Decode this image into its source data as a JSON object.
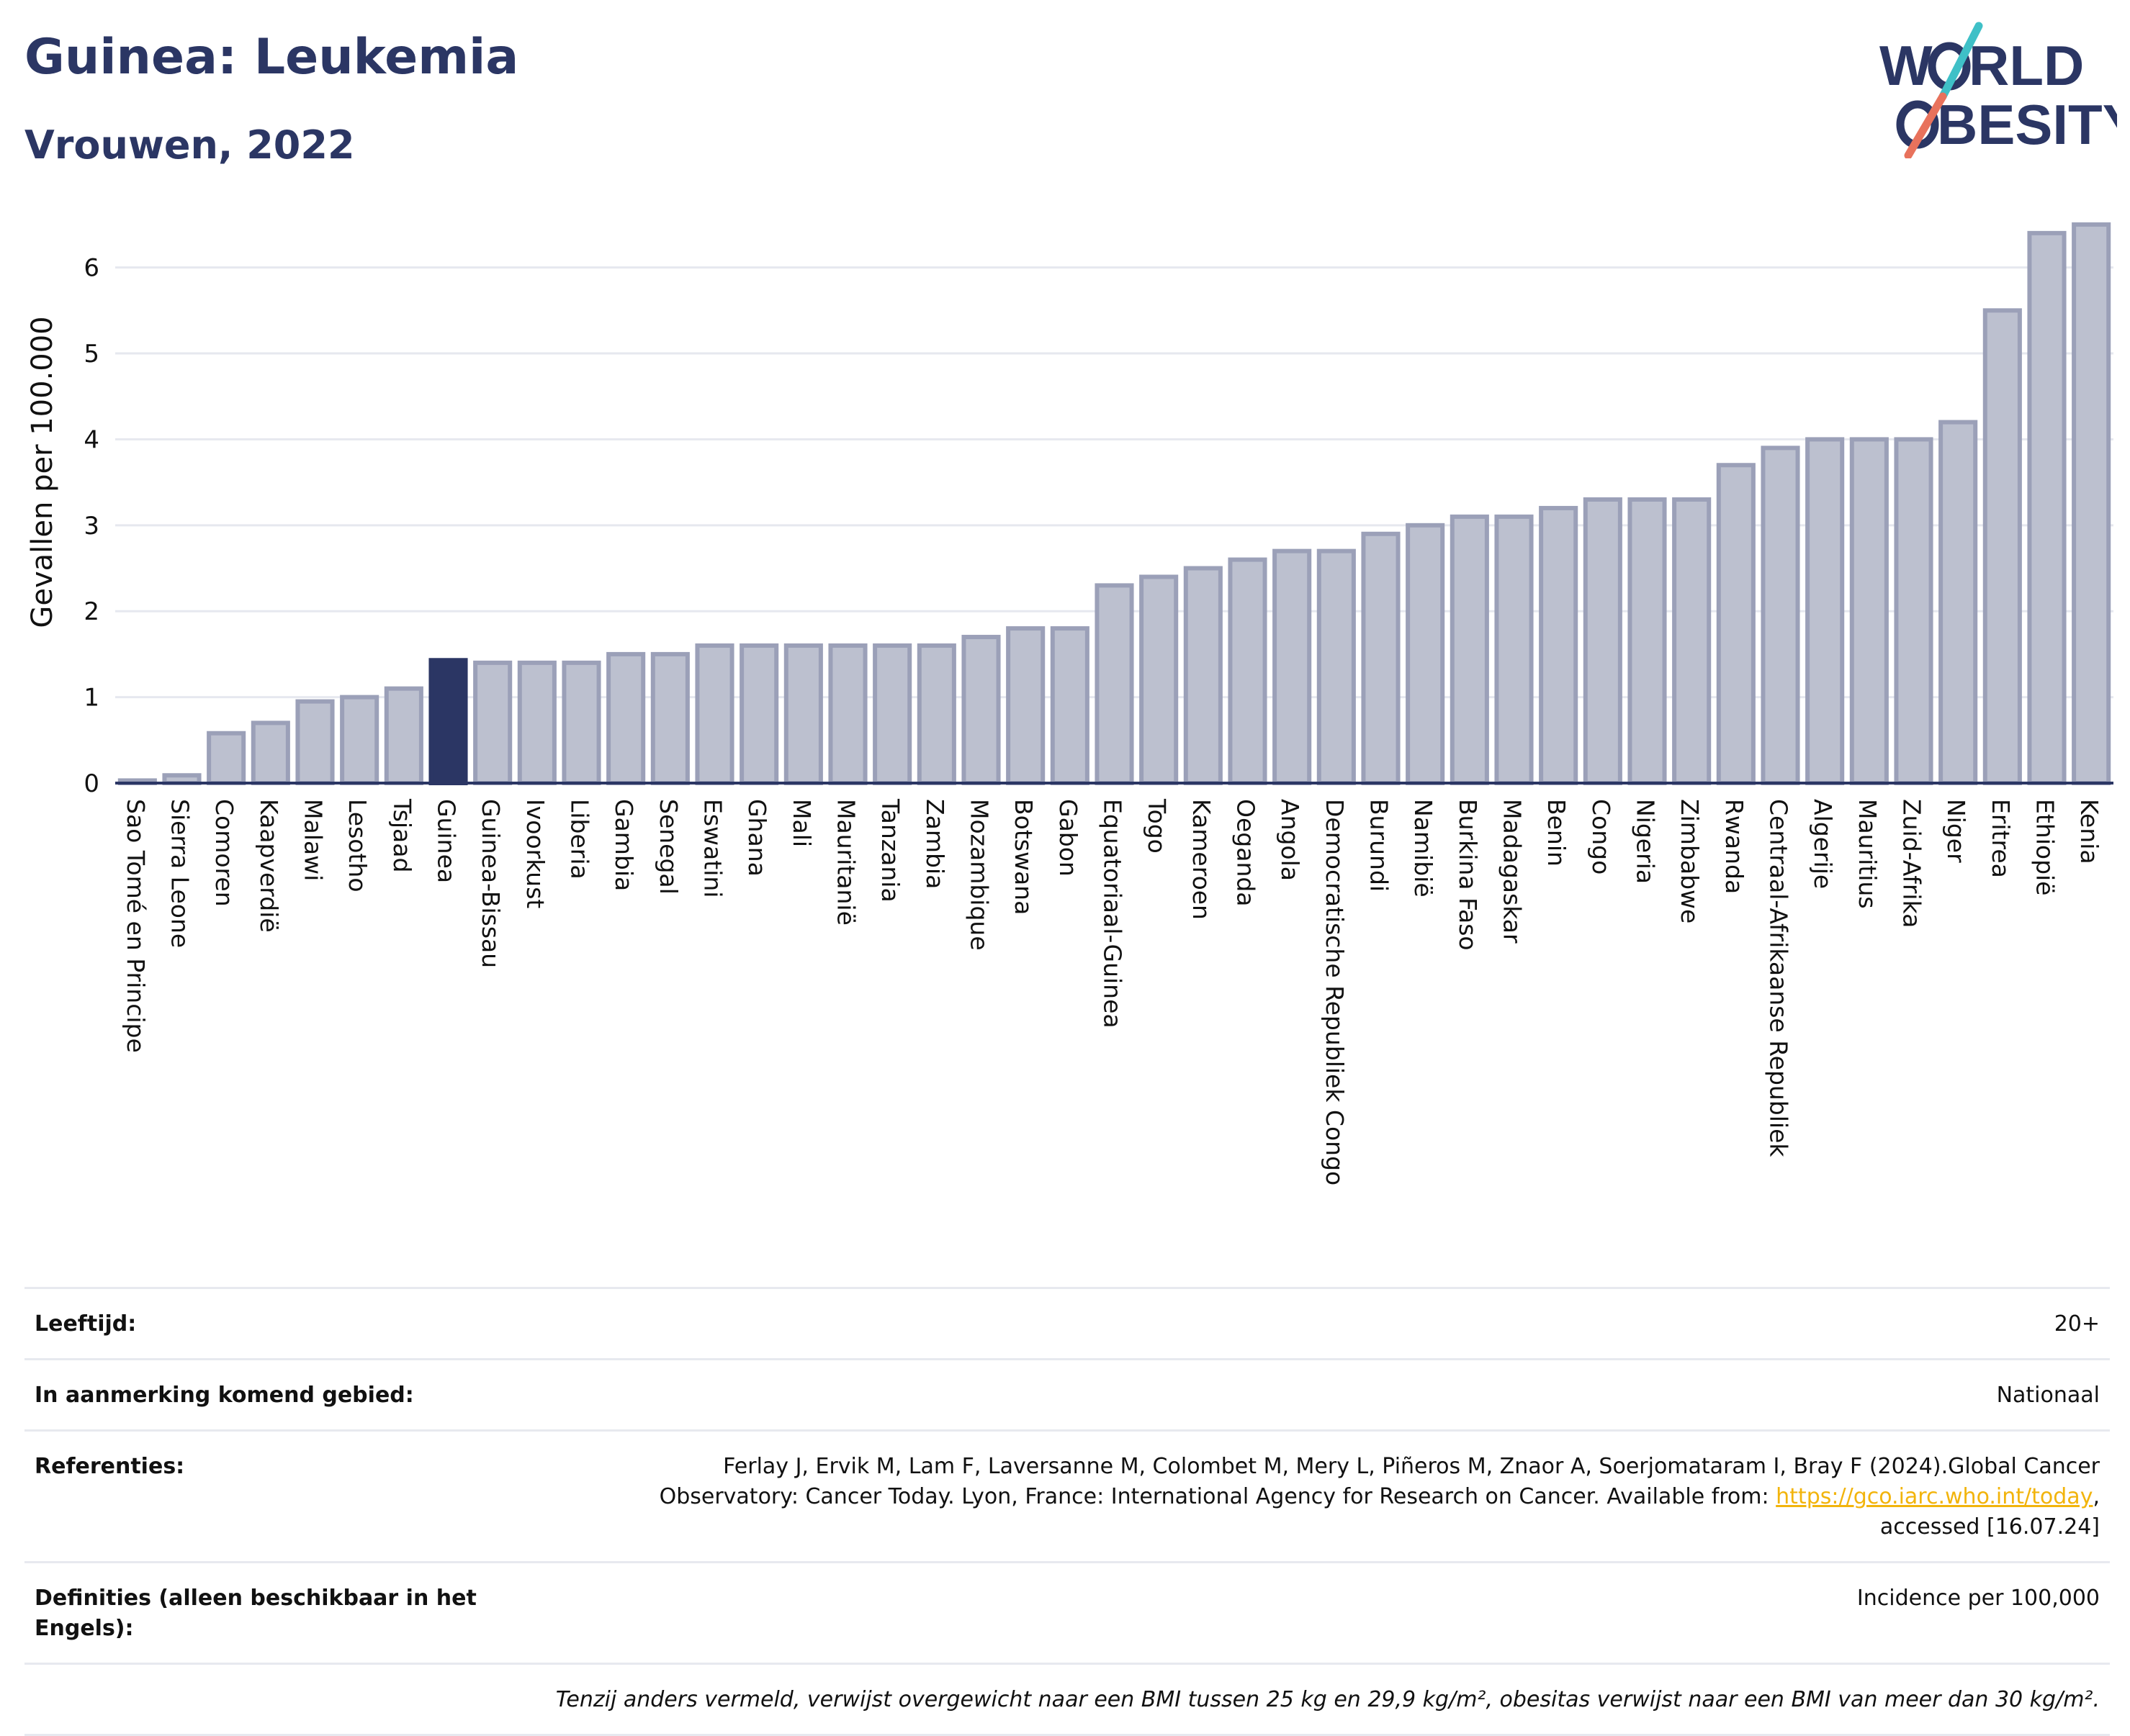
{
  "header": {
    "title": "Guinea: Leukemia",
    "subtitle": "Vrouwen, 2022"
  },
  "logo": {
    "line1_a": "W",
    "line1_b": "RLD",
    "line2_b": "BESITY",
    "colors": {
      "text": "#2b3664",
      "slash_top": "#3fc0c7",
      "slash_bottom": "#e8725c"
    }
  },
  "colors": {
    "bar": "#bcc0cf",
    "bar_stroke": "#9ba0b8",
    "highlight": "#2b3664",
    "grid": "#e6e8ef",
    "axis": "#2b3664"
  },
  "chart_data": {
    "type": "bar",
    "title": "Guinea: Leukemia",
    "subtitle": "Vrouwen, 2022",
    "xlabel": "",
    "ylabel": "Gevallen per 100.000",
    "ylim": [
      0,
      6.6
    ],
    "yticks": [
      0,
      1,
      2,
      3,
      4,
      5,
      6
    ],
    "grid": true,
    "highlight": "Guinea",
    "categories": [
      "Sao Tomé en Principe",
      "Sierra Leone",
      "Comoren",
      "Kaapverdië",
      "Malawi",
      "Lesotho",
      "Tsjaad",
      "Guinea",
      "Guinea-Bissau",
      "Ivoorkust",
      "Liberia",
      "Gambia",
      "Senegal",
      "Eswatini",
      "Ghana",
      "Mali",
      "Mauritanië",
      "Tanzania",
      "Zambia",
      "Mozambique",
      "Botswana",
      "Gabon",
      "Equatoriaal-Guinea",
      "Togo",
      "Kameroen",
      "Oeganda",
      "Angola",
      "Democratische Republiek Congo",
      "Burundi",
      "Namibië",
      "Burkina Faso",
      "Madagaskar",
      "Benin",
      "Congo",
      "Nigeria",
      "Zimbabwe",
      "Rwanda",
      "Centraal-Afrikaanse Republiek",
      "Algerije",
      "Mauritius",
      "Zuid-Afrika",
      "Niger",
      "Eritrea",
      "Ethiopië",
      "Kenia"
    ],
    "values": [
      0.03,
      0.09,
      0.58,
      0.7,
      0.95,
      1.0,
      1.1,
      1.43,
      1.4,
      1.4,
      1.4,
      1.5,
      1.5,
      1.6,
      1.6,
      1.6,
      1.6,
      1.6,
      1.6,
      1.7,
      1.8,
      1.8,
      2.3,
      2.4,
      2.5,
      2.6,
      2.7,
      2.7,
      2.9,
      3.0,
      3.1,
      3.1,
      3.2,
      3.3,
      3.3,
      3.3,
      3.7,
      3.9,
      4.0,
      4.0,
      4.0,
      4.2,
      5.5,
      6.4,
      6.5
    ]
  },
  "meta": {
    "age_label": "Leeftijd:",
    "age_value": "20+",
    "area_label": "In aanmerking komend gebied:",
    "area_value": "Nationaal",
    "ref_label": "Referenties:",
    "ref_line1": "Ferlay J, Ervik M, Lam F, Laversanne M, Colombet M, Mery L, Piñeros M, Znaor A, Soerjomataram I, Bray F (2024).Global Cancer",
    "ref_line2": "Observatory: Cancer Today. Lyon, France: International Agency for Research on Cancer. Available from: ",
    "ref_link": "https://gco.iarc.who.int/today",
    "ref_line2_end": ",",
    "ref_line3": "accessed [16.07.24]",
    "def_label": "Definities (alleen beschikbaar in het Engels):",
    "def_value": "Incidence per 100,000",
    "footnote": "Tenzij anders vermeld, verwijst overgewicht naar een BMI tussen 25 kg en 29,9 kg/m², obesitas verwijst naar een BMI van meer dan 30 kg/m²."
  }
}
